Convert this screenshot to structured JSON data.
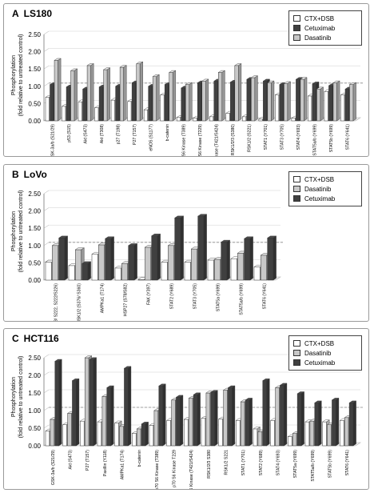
{
  "chart_data": [
    {
      "type": "bar",
      "panel_letter": "A",
      "title": "LS180",
      "ylabel_line1": "Phosphorylation",
      "ylabel_line2": "(fold relative to untreated control)",
      "ylim": [
        0,
        2.5
      ],
      "yticks": [
        "0.00",
        "0.50",
        "1.00",
        "1.50",
        "2.00",
        "2.50"
      ],
      "reference_line": 1.0,
      "categories": [
        "GSK-3a/b (S21/29)",
        "p53 (S15)",
        "Akt (S473)",
        "Akt (T308)",
        "p27 (T198)",
        "P27 (T157)",
        "eNOS (S1177)",
        "b-catenin",
        "p70 S6 Kinase (T389)",
        "p70 S6 Kinase (T229)",
        "p70 S6 Kinase (T421/S424)",
        "RSK1/2/3 (S380)",
        "RSK1/2 (S221)",
        "STAT1 (Y701)",
        "STAT3 (Y705)",
        "STAT4 (Y693)",
        "STAT5a/b (Y699)",
        "STAT5b (Y699)",
        "STAT6 (Y641)"
      ],
      "series": [
        {
          "name": "CTX+DSB",
          "color": "#ffffff",
          "values": [
            0.68,
            0.42,
            0.55,
            0.38,
            0.6,
            0.56,
            0.32,
            0.75,
            0.1,
            0.08,
            0.12,
            0.22,
            0.12,
            0.05,
            0.75,
            0.08,
            0.72,
            0.85,
            0.75
          ]
        },
        {
          "name": "Cetuximab",
          "color": "#404040",
          "values": [
            1.05,
            0.98,
            0.92,
            0.98,
            1.0,
            1.1,
            1.0,
            1.05,
            0.95,
            1.1,
            1.15,
            1.12,
            1.2,
            1.15,
            1.05,
            1.2,
            1.07,
            1.02,
            0.92
          ]
        },
        {
          "name": "Dasatinib",
          "color": "#c8c8c8",
          "values": [
            1.75,
            1.45,
            1.6,
            1.48,
            1.55,
            1.65,
            1.28,
            1.4,
            1.05,
            1.15,
            1.4,
            1.6,
            1.25,
            1.1,
            1.08,
            1.2,
            0.92,
            1.1,
            1.05
          ]
        }
      ],
      "legend": [
        {
          "name": "CTX+DSB",
          "color": "#ffffff"
        },
        {
          "name": "Cetuximab",
          "color": "#404040"
        },
        {
          "name": "Dasatinib",
          "color": "#c8c8c8"
        }
      ]
    },
    {
      "type": "bar",
      "panel_letter": "B",
      "title": "LoVo",
      "ylabel_line1": "Phosphorylation",
      "ylabel_line2": "(fold relative to untreated control)",
      "ylim": [
        0,
        2.5
      ],
      "yticks": [
        "0.00",
        "0.50",
        "1.00",
        "1.50",
        "2.00",
        "2.50"
      ],
      "reference_line": 1.0,
      "categories": [
        "MEK1/2 (S218/ S222, S222/S226)",
        "MSK1/2 (S376/ S360)",
        "AMPKa1 (T174)",
        "HSP27 (S78/S82)",
        "FAK (Y397)",
        "STAT2 (Y689)",
        "STAT3 (Y705)",
        "STAT5a (Y699)",
        "STAT5a/b (Y699)",
        "STAT6 (Y641)"
      ],
      "series": [
        {
          "name": "CTX+DSB",
          "color": "#ffffff",
          "values": [
            0.52,
            0.42,
            0.75,
            0.35,
            0.02,
            0.52,
            0.52,
            0.58,
            0.62,
            0.38
          ]
        },
        {
          "name": "Dasatinib",
          "color": "#c8c8c8",
          "values": [
            1.0,
            0.88,
            1.02,
            0.48,
            0.95,
            1.0,
            0.9,
            0.6,
            0.78,
            0.72
          ]
        },
        {
          "name": "Cetuximab",
          "color": "#404040",
          "values": [
            1.22,
            0.48,
            1.2,
            1.0,
            1.28,
            1.8,
            1.85,
            1.1,
            1.2,
            1.22
          ]
        }
      ],
      "legend": [
        {
          "name": "CTX+DSB",
          "color": "#ffffff"
        },
        {
          "name": "Dasatinib",
          "color": "#c8c8c8"
        },
        {
          "name": "Cetuximab",
          "color": "#404040"
        }
      ]
    },
    {
      "type": "bar",
      "panel_letter": "C",
      "title": "HCT116",
      "ylabel_line1": "Phosphorylation",
      "ylabel_line2": "(fold relative to untreated control)",
      "ylim": [
        0,
        2.5
      ],
      "yticks": [
        "0.00",
        "0.50",
        "1.00",
        "1.50",
        "2.00",
        "2.50"
      ],
      "reference_line": 1.0,
      "categories": [
        "GSK-3a/b (S21/29)",
        "Akt (S473)",
        "P27 (T157)",
        "Paxillin (Y118)",
        "AMPKa1 (T174)",
        "b-catenin",
        "p70 S6 Kinase (T389)",
        "p70 S6 Kinase T229",
        "p70 S6 Kinase (T421/S424)",
        "RSK1/2/3 S380",
        "RSK1/2 S221",
        "STAT1 (Y701)",
        "STAT2 (Y689)",
        "STAT4 (Y693)",
        "STAT5a (Y699)",
        "STAT5a/b (Y699)",
        "STAT5b (Y699)",
        "STAT6 (Y641)"
      ],
      "series": [
        {
          "name": "CTX+DSB",
          "color": "#ffffff",
          "values": [
            0.42,
            0.6,
            0.7,
            0.68,
            0.65,
            0.35,
            0.58,
            0.72,
            0.75,
            0.78,
            0.76,
            0.72,
            0.48,
            0.72,
            0.26,
            0.68,
            0.68,
            0.72
          ]
        },
        {
          "name": "Dasatinib",
          "color": "#c8c8c8",
          "values": [
            0.75,
            0.92,
            2.5,
            1.4,
            0.55,
            0.48,
            1.0,
            1.3,
            1.35,
            1.5,
            1.58,
            1.25,
            0.4,
            1.65,
            0.35,
            0.7,
            0.6,
            0.8
          ]
        },
        {
          "name": "Cetuximab",
          "color": "#404040",
          "values": [
            2.4,
            1.85,
            2.45,
            1.65,
            2.2,
            0.62,
            1.7,
            1.38,
            1.45,
            1.52,
            1.65,
            1.3,
            1.85,
            1.72,
            1.48,
            1.22,
            1.3,
            1.22
          ]
        }
      ],
      "legend": [
        {
          "name": "CTX+DSB",
          "color": "#ffffff"
        },
        {
          "name": "Dasatinib",
          "color": "#c8c8c8"
        },
        {
          "name": "Cetuximab",
          "color": "#404040"
        }
      ]
    }
  ]
}
